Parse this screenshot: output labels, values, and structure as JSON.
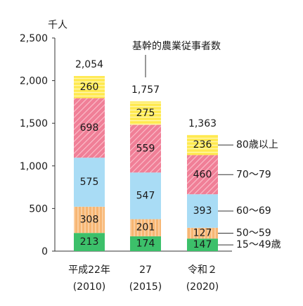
{
  "chart_data": {
    "type": "bar",
    "stacked": true,
    "unit_label": "千人",
    "annotation": "基幹的農業従事者数",
    "categories": [
      {
        "label": "平成22年",
        "year": "(2010)"
      },
      {
        "label": "27",
        "year": "(2015)"
      },
      {
        "label": "令和２",
        "year": "(2020)"
      }
    ],
    "totals": [
      "2,054",
      "1,757",
      "1,363"
    ],
    "series": [
      {
        "name": "15〜49歳",
        "values": [
          213,
          174,
          147
        ],
        "color": "#3cc06a",
        "pattern": "none"
      },
      {
        "name": "50〜59",
        "values": [
          308,
          201,
          127
        ],
        "color": "#f7b673",
        "pattern": "vertical-stripes"
      },
      {
        "name": "60〜69",
        "values": [
          575,
          547,
          393
        ],
        "color": "#a9dcf5",
        "pattern": "none"
      },
      {
        "name": "70〜79",
        "values": [
          698,
          559,
          460
        ],
        "color": "#f28ea2",
        "pattern": "diagonal-stripes"
      },
      {
        "name": "80歳以上",
        "values": [
          260,
          275,
          236
        ],
        "color": "#ffe94f",
        "pattern": "horizontal-stripes"
      }
    ],
    "yticks": [
      "0",
      "500",
      "1,000",
      "1,500",
      "2,000",
      "2,500"
    ],
    "ylim": [
      0,
      2500
    ],
    "grid": false
  }
}
